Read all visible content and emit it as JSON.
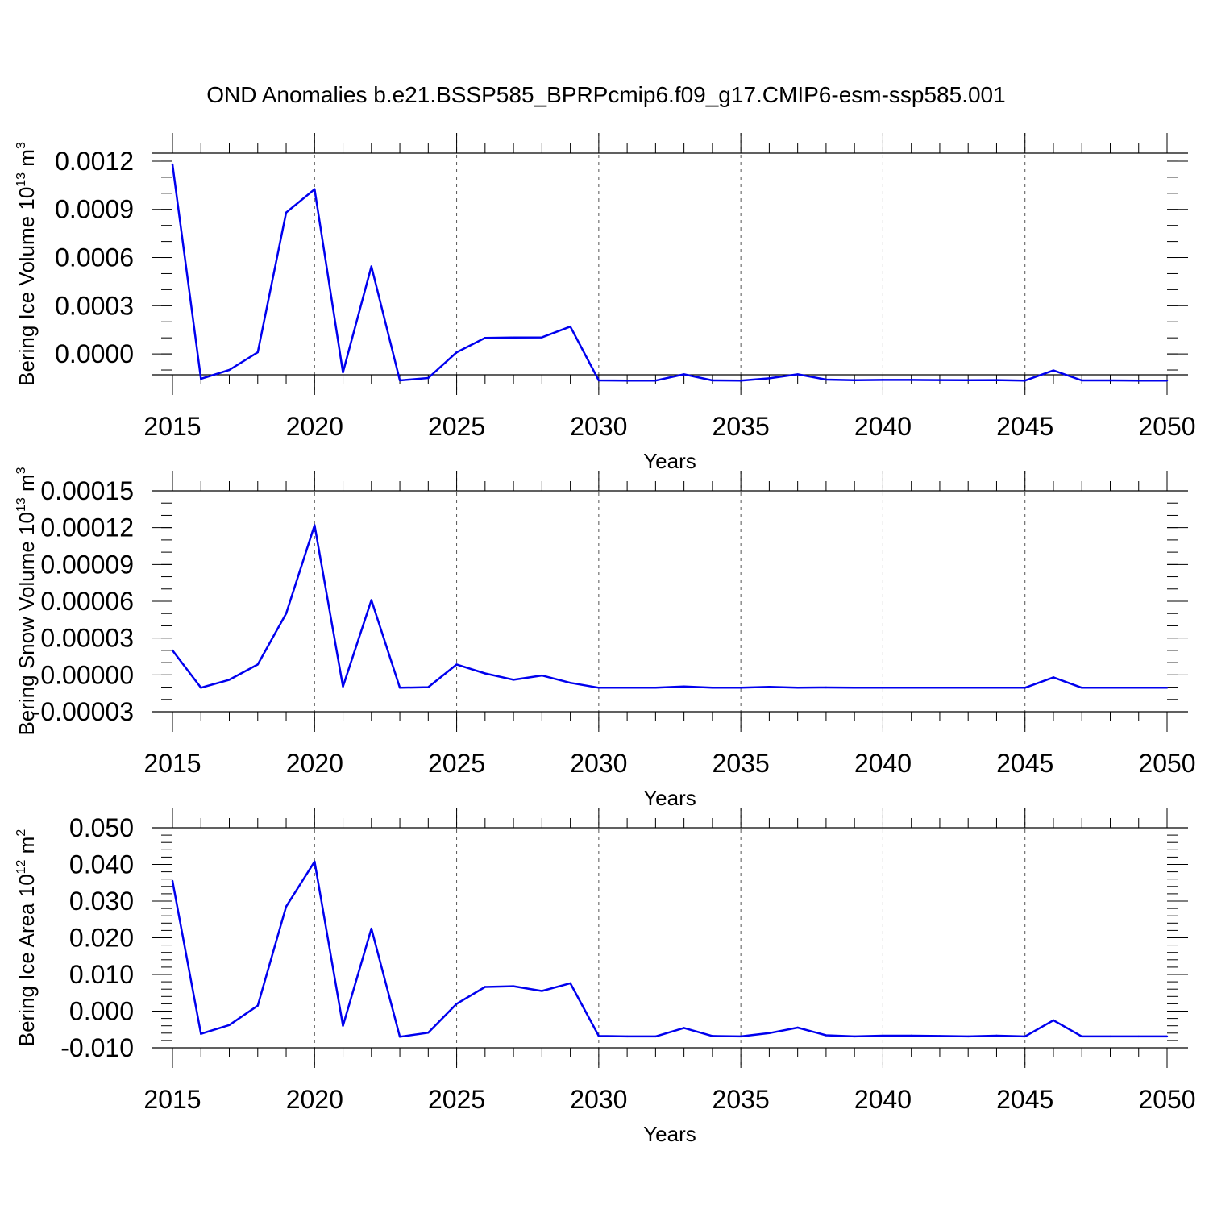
{
  "title": "OND Anomalies b.e21.BSSP585_BPRPcmip6.f09_g17.CMIP6-esm-ssp585.001",
  "series_color": "#0000ee",
  "chart_data": [
    {
      "type": "line",
      "name": "ice-volume",
      "ylabel": "Bering Ice Volume 10",
      "ylabel_exp": "13",
      "ylabel_unit": "m",
      "ylabel_unit_exp": "3",
      "xlabel": "Years",
      "xlim": [
        2015,
        2050
      ],
      "ylim": [
        -0.00013,
        0.00125
      ],
      "yticks": [
        0.0,
        0.0003,
        0.0006,
        0.0009,
        0.0012
      ],
      "ytick_labels": [
        "0.0000",
        "0.0003",
        "0.0006",
        "0.0009",
        "0.0012"
      ],
      "yminor_step": 0.0001,
      "xticks": [
        2015,
        2020,
        2025,
        2030,
        2035,
        2040,
        2045,
        2050
      ],
      "xtick_labels": [
        "2015",
        "2020",
        "2025",
        "2030",
        "2035",
        "2040",
        "2045",
        "2050"
      ],
      "grid": "vertical-dashed",
      "x": [
        2015,
        2016,
        2017,
        2018,
        2019,
        2020,
        2021,
        2022,
        2023,
        2024,
        2025,
        2026,
        2027,
        2028,
        2029,
        2030,
        2031,
        2032,
        2033,
        2034,
        2035,
        2036,
        2037,
        2038,
        2039,
        2040,
        2041,
        2042,
        2043,
        2044,
        2045,
        2046,
        2047,
        2048,
        2049,
        2050
      ],
      "values": [
        0.00118,
        -0.000155,
        -0.0001,
        1e-05,
        0.00088,
        0.001025,
        -0.000115,
        0.000545,
        -0.000165,
        -0.00015,
        1e-05,
        0.0001,
        0.000102,
        0.000103,
        0.00017,
        -0.000165,
        -0.000166,
        -0.000166,
        -0.000127,
        -0.000165,
        -0.000166,
        -0.000152,
        -0.000127,
        -0.00016,
        -0.000164,
        -0.000162,
        -0.000162,
        -0.000163,
        -0.000164,
        -0.000163,
        -0.000166,
        -0.000103,
        -0.000165,
        -0.000165,
        -0.000166,
        -0.000166
      ]
    },
    {
      "type": "line",
      "name": "snow-volume",
      "ylabel": "Bering Snow Volume 10",
      "ylabel_exp": "13",
      "ylabel_unit": "m",
      "ylabel_unit_exp": "3",
      "xlabel": "Years",
      "xlim": [
        2015,
        2050
      ],
      "ylim": [
        -3e-05,
        0.00015
      ],
      "yticks": [
        -3e-05,
        0.0,
        3e-05,
        6e-05,
        9e-05,
        0.00012,
        0.00015
      ],
      "ytick_labels": [
        "-0.00003",
        "0.00000",
        "0.00003",
        "0.00006",
        "0.00009",
        "0.00012",
        "0.00015"
      ],
      "yminor_step": 1e-05,
      "xticks": [
        2015,
        2020,
        2025,
        2030,
        2035,
        2040,
        2045,
        2050
      ],
      "xtick_labels": [
        "2015",
        "2020",
        "2025",
        "2030",
        "2035",
        "2040",
        "2045",
        "2050"
      ],
      "grid": "vertical-dashed",
      "x": [
        2015,
        2016,
        2017,
        2018,
        2019,
        2020,
        2021,
        2022,
        2023,
        2024,
        2025,
        2026,
        2027,
        2028,
        2029,
        2030,
        2031,
        2032,
        2033,
        2034,
        2035,
        2036,
        2037,
        2038,
        2039,
        2040,
        2041,
        2042,
        2043,
        2044,
        2045,
        2046,
        2047,
        2048,
        2049,
        2050
      ],
      "values": [
        2e-05,
        -1.05e-05,
        -4e-06,
        8.5e-06,
        5e-05,
        0.000122,
        -9.5e-06,
        6.1e-05,
        -1.05e-05,
        -1e-05,
        8.5e-06,
        1.2e-06,
        -4e-06,
        -5e-07,
        -6.5e-06,
        -1.05e-05,
        -1.05e-05,
        -1.05e-05,
        -9.5e-06,
        -1.05e-05,
        -1.05e-05,
        -9.8e-06,
        -1.04e-05,
        -1.03e-05,
        -1.05e-05,
        -1.05e-05,
        -1.04e-05,
        -1.05e-05,
        -1.05e-05,
        -1.04e-05,
        -1.05e-05,
        -2e-06,
        -1.05e-05,
        -1.05e-05,
        -1.05e-05,
        -1.05e-05
      ]
    },
    {
      "type": "line",
      "name": "ice-area",
      "ylabel": "Bering Ice Area 10",
      "ylabel_exp": "12",
      "ylabel_unit": "m",
      "ylabel_unit_exp": "2",
      "xlabel": "Years",
      "xlim": [
        2015,
        2050
      ],
      "ylim": [
        -0.01,
        0.05
      ],
      "yticks": [
        -0.01,
        0.0,
        0.01,
        0.02,
        0.03,
        0.04,
        0.05
      ],
      "ytick_labels": [
        "-0.010",
        "0.000",
        "0.010",
        "0.020",
        "0.030",
        "0.040",
        "0.050"
      ],
      "yminor_step": 0.002,
      "xticks": [
        2015,
        2020,
        2025,
        2030,
        2035,
        2040,
        2045,
        2050
      ],
      "xtick_labels": [
        "2015",
        "2020",
        "2025",
        "2030",
        "2035",
        "2040",
        "2045",
        "2050"
      ],
      "grid": "vertical-dashed",
      "x": [
        2015,
        2016,
        2017,
        2018,
        2019,
        2020,
        2021,
        2022,
        2023,
        2024,
        2025,
        2026,
        2027,
        2028,
        2029,
        2030,
        2031,
        2032,
        2033,
        2034,
        2035,
        2036,
        2037,
        2038,
        2039,
        2040,
        2041,
        2042,
        2043,
        2044,
        2045,
        2046,
        2047,
        2048,
        2049,
        2050
      ],
      "values": [
        0.0355,
        -0.0062,
        -0.0038,
        0.0015,
        0.0285,
        0.0408,
        -0.004,
        0.0225,
        -0.007,
        -0.0059,
        0.002,
        0.0066,
        0.0068,
        0.0055,
        0.0076,
        -0.0068,
        -0.0069,
        -0.0069,
        -0.0046,
        -0.0068,
        -0.0069,
        -0.006,
        -0.0045,
        -0.0066,
        -0.0069,
        -0.0067,
        -0.0067,
        -0.0068,
        -0.0069,
        -0.0067,
        -0.0069,
        -0.0025,
        -0.0069,
        -0.0069,
        -0.0069,
        -0.0069
      ]
    }
  ]
}
